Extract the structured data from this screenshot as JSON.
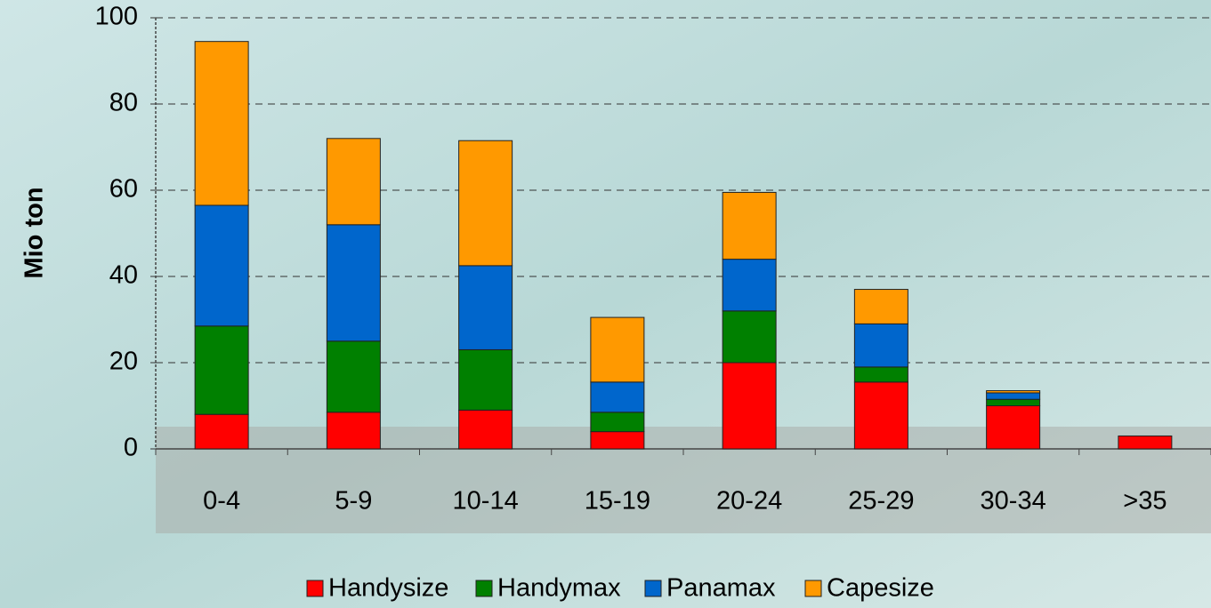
{
  "chart_data": {
    "type": "stacked-bar",
    "y_label": "Mio ton",
    "categories": [
      "0-4",
      "5-9",
      "10-14",
      "15-19",
      "20-24",
      "25-29",
      "30-34",
      ">35"
    ],
    "series": [
      {
        "name": "Handysize",
        "color": "#ff0000",
        "values": [
          8,
          8.5,
          9,
          4,
          20,
          15.5,
          10,
          3
        ]
      },
      {
        "name": "Handymax",
        "color": "#008000",
        "values": [
          20.5,
          16.5,
          14,
          4.5,
          12,
          3.5,
          1.5,
          0
        ]
      },
      {
        "name": "Panamax",
        "color": "#0066cc",
        "values": [
          28,
          27,
          19.5,
          7,
          12,
          10,
          1.5,
          0
        ]
      },
      {
        "name": "Capesize",
        "color": "#ff9900",
        "values": [
          38,
          20,
          29,
          15,
          15.5,
          8,
          0.5,
          0
        ]
      }
    ],
    "ylim": [
      0,
      100
    ],
    "yticks": [
      0,
      20,
      40,
      60,
      80,
      100
    ],
    "grid": true,
    "legend": "bottom"
  }
}
